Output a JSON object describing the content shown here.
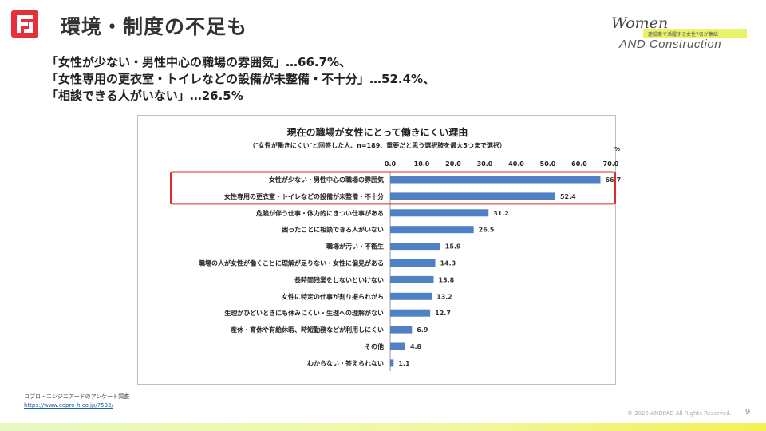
{
  "slide": {
    "title": "環境・制度の不足も",
    "page_number": "9",
    "copyright": "© 2025 ANDPAD All Rights Reserved."
  },
  "brand": {
    "script": "Women",
    "subtitle": "建設業で活躍する女性7名が集結",
    "main": "AND Construction"
  },
  "summary": [
    "「女性が少ない・男性中心の職場の雰囲気」…66.7%、",
    "「女性専用の更衣室・トイレなどの設備が未整備・不十分」…52.4%、",
    "「相談できる人がいない」…26.5%"
  ],
  "source": {
    "label": "コプロ・エンジニアードのアンケート調査",
    "url": "https://www.copro-h.co.jp/7532/"
  },
  "colors": {
    "accent": "#e8303c",
    "bar": "#4f81c4",
    "highlight": "#e02a2a"
  },
  "chart_data": {
    "type": "bar",
    "orientation": "horizontal",
    "title": "現在の職場が女性にとって働きにくい理由",
    "subtitle": "（″女性が働きにくい″と回答した人、n=189、重要だと思う選択肢を最大5つまで選択）",
    "unit_label": "%",
    "xlim": [
      0,
      70
    ],
    "ticks": [
      "0.0",
      "10.0",
      "20.0",
      "30.0",
      "40.0",
      "50.0",
      "60.0",
      "70.0"
    ],
    "tick_values": [
      0,
      10,
      20,
      30,
      40,
      50,
      60,
      70
    ],
    "categories": [
      "女性が少ない・男性中心の職場の雰囲気",
      "女性専用の更衣室・トイレなどの設備が未整備・不十分",
      "危険が伴う仕事・体力的にきつい仕事がある",
      "困ったことに相談できる人がいない",
      "職場が汚い・不衛生",
      "職場の人が女性が働くことに理解が足りない・女性に偏見がある",
      "長時間残業をしないといけない",
      "女性に特定の仕事が割り振られがち",
      "生理がひどいときにも休みにくい・生理への理解がない",
      "産休・育休や有給休暇、時短勤務などが利用しにくい",
      "その他",
      "わからない・答えられない"
    ],
    "values": [
      66.7,
      52.4,
      31.2,
      26.5,
      15.9,
      14.3,
      13.8,
      13.2,
      12.7,
      6.9,
      4.8,
      1.1
    ],
    "value_labels": [
      "66.7",
      "52.4",
      "31.2",
      "26.5",
      "15.9",
      "14.3",
      "13.8",
      "13.2",
      "12.7",
      "6.9",
      "4.8",
      "1.1"
    ],
    "highlighted_count": 2,
    "grid": false
  }
}
